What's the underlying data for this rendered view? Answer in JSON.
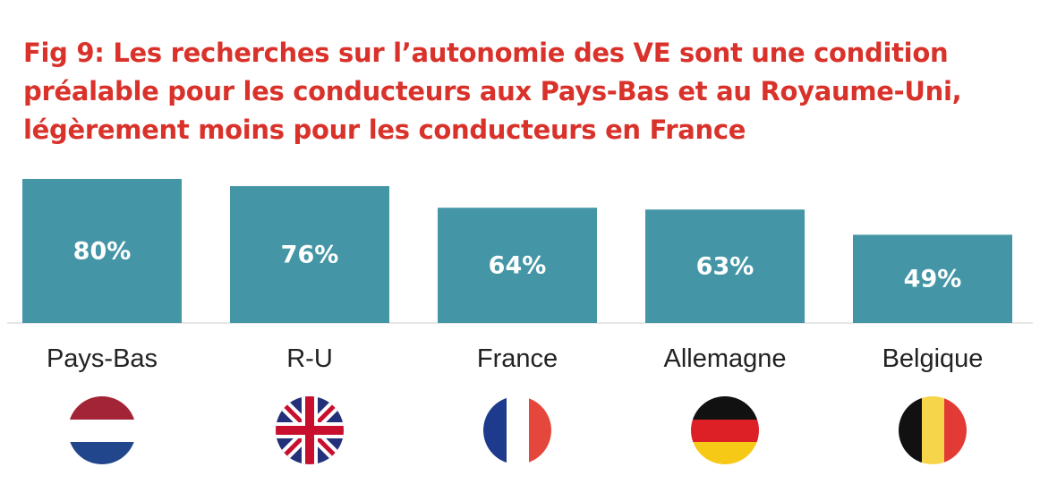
{
  "chart_data": {
    "type": "bar",
    "title": "Fig 9: Les recherches sur l’autonomie des VE sont une condition préalable pour les conducteurs aux Pays-Bas et au Royaume-Uni, légèrement moins pour les conducteurs en France",
    "categories": [
      "Pays-Bas",
      "R-U",
      "France",
      "Allemagne",
      "Belgique"
    ],
    "values": [
      80,
      76,
      64,
      63,
      49
    ],
    "data_labels": [
      "80%",
      "76%",
      "64%",
      "63%",
      "49%"
    ],
    "flags": [
      "netherlands-flag-icon",
      "uk-flag-icon",
      "france-flag-icon",
      "germany-flag-icon",
      "belgium-flag-icon"
    ],
    "ylim": [
      0,
      80
    ],
    "grid": false,
    "legend": "none",
    "colors": {
      "bar": "#4496a6",
      "title": "#d9322b",
      "bar_label": "#ffffff",
      "category_label": "#222222",
      "baseline": "#cfcfcf"
    }
  }
}
